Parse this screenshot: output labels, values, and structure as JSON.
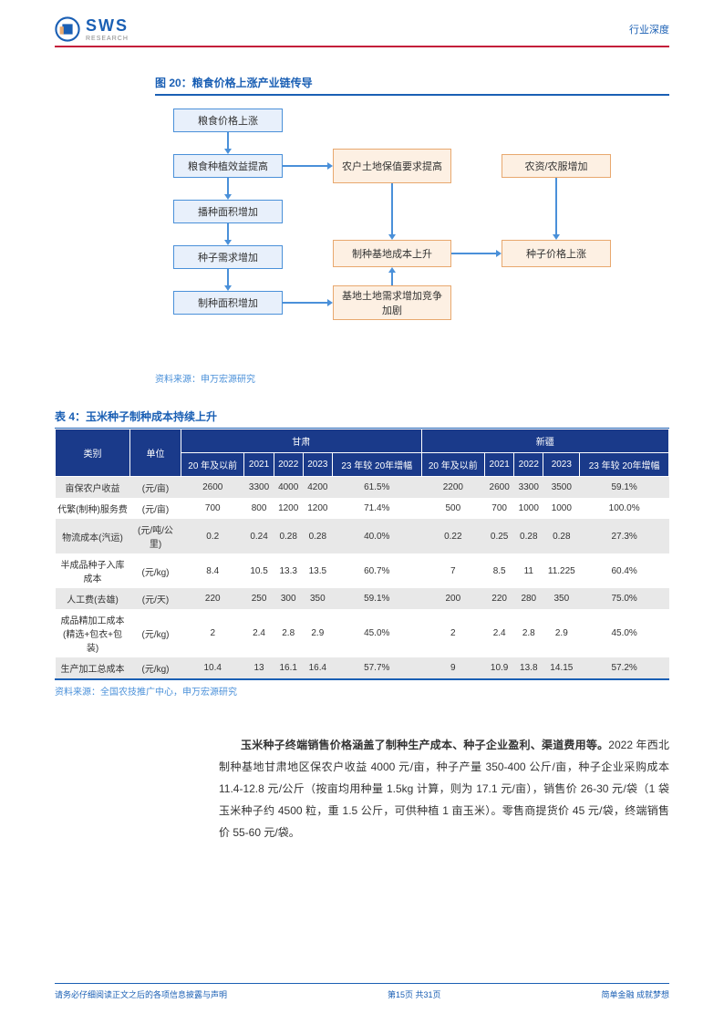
{
  "header": {
    "logo_text": "SWS",
    "logo_sub": "RESEARCH",
    "doc_type": "行业深度"
  },
  "figure20": {
    "title": "图 20：粮食价格上涨产业链传导",
    "source": "资料来源：申万宏源研究",
    "nodes": {
      "n1": "粮食价格上涨",
      "n2": "粮食种植效益提高",
      "n3": "播种面积增加",
      "n4": "种子需求增加",
      "n5": "制种面积增加",
      "n6": "农户土地保值要求提高",
      "n7": "制种基地成本上升",
      "n8": "基地土地需求增加竞争加剧",
      "n9": "农资/农服增加",
      "n10": "种子价格上涨"
    }
  },
  "table4": {
    "title": "表 4：玉米种子制种成本持续上升",
    "source": "资料来源：全国农技推广中心，申万宏源研究",
    "headers": {
      "category": "类别",
      "unit": "单位",
      "region1": "甘肃",
      "region2": "新疆",
      "col1": "20 年及以前",
      "col2": "2021",
      "col3": "2022",
      "col4": "2023",
      "col5": "23 年较 20年增幅"
    },
    "rows": [
      {
        "cat": "亩保农户收益",
        "unit": "(元/亩)",
        "g": [
          "2600",
          "3300",
          "4000",
          "4200",
          "61.5%"
        ],
        "x": [
          "2200",
          "2600",
          "3300",
          "3500",
          "59.1%"
        ]
      },
      {
        "cat": "代繁(制种)服务费",
        "unit": "(元/亩)",
        "g": [
          "700",
          "800",
          "1200",
          "1200",
          "71.4%"
        ],
        "x": [
          "500",
          "700",
          "1000",
          "1000",
          "100.0%"
        ]
      },
      {
        "cat": "物流成本(汽运)",
        "unit": "(元/吨/公里)",
        "g": [
          "0.2",
          "0.24",
          "0.28",
          "0.28",
          "40.0%"
        ],
        "x": [
          "0.22",
          "0.25",
          "0.28",
          "0.28",
          "27.3%"
        ]
      },
      {
        "cat": "半成品种子入库成本",
        "unit": "(元/kg)",
        "g": [
          "8.4",
          "10.5",
          "13.3",
          "13.5",
          "60.7%"
        ],
        "x": [
          "7",
          "8.5",
          "11",
          "11.225",
          "60.4%"
        ]
      },
      {
        "cat": "人工费(去雄)",
        "unit": "(元/天)",
        "g": [
          "220",
          "250",
          "300",
          "350",
          "59.1%"
        ],
        "x": [
          "200",
          "220",
          "280",
          "350",
          "75.0%"
        ]
      },
      {
        "cat": "成品精加工成本(精选+包衣+包装)",
        "unit": "(元/kg)",
        "g": [
          "2",
          "2.4",
          "2.8",
          "2.9",
          "45.0%"
        ],
        "x": [
          "2",
          "2.4",
          "2.8",
          "2.9",
          "45.0%"
        ]
      },
      {
        "cat": "生产加工总成本",
        "unit": "(元/kg)",
        "g": [
          "10.4",
          "13",
          "16.1",
          "16.4",
          "57.7%"
        ],
        "x": [
          "9",
          "10.9",
          "13.8",
          "14.15",
          "57.2%"
        ]
      }
    ]
  },
  "paragraph": {
    "bold": "玉米种子终端销售价格涵盖了制种生产成本、种子企业盈利、渠道费用等。",
    "rest": "2022 年西北制种基地甘肃地区保农户收益 4000 元/亩，种子产量 350-400 公斤/亩，种子企业采购成本 11.4-12.8 元/公斤（按亩均用种量 1.5kg 计算，则为 17.1 元/亩），销售价 26-30 元/袋（1 袋玉米种子约 4500 粒，重 1.5 公斤，可供种植 1 亩玉米）。零售商提货价 45 元/袋，终端销售价 55-60 元/袋。"
  },
  "footer": {
    "left": "请务必仔细阅读正文之后的各项信息披露与声明",
    "center": "第15页 共31页",
    "right": "简单金融 成就梦想"
  }
}
